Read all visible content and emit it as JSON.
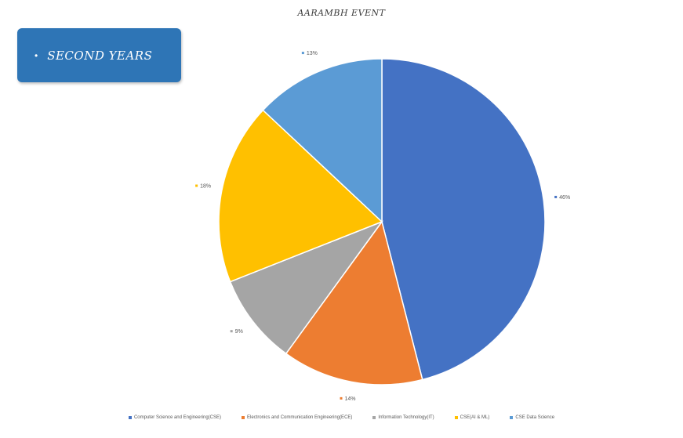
{
  "badge": {
    "bullet": "•",
    "text": "SECOND YEARS"
  },
  "chart_data": {
    "type": "pie",
    "title": "AARAMBH EVENT",
    "categories": [
      "Computer Science and Engineering(CSE)",
      "Electronics and Communication Engineering(ECE)",
      "Information Technology(IT)",
      "CSE(AI & ML)",
      "CSE Data Science"
    ],
    "values": [
      46,
      14,
      9,
      18,
      13
    ],
    "labels": [
      "46%",
      "14%",
      "9%",
      "18%",
      "13%"
    ],
    "colors": [
      "#4472c4",
      "#ed7d31",
      "#a5a5a5",
      "#ffc000",
      "#5b9bd5"
    ],
    "legend_position": "bottom"
  }
}
